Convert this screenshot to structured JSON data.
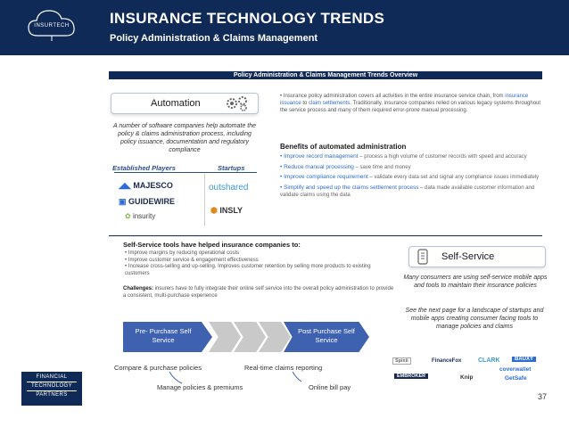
{
  "header": {
    "badge": "INSURTECH",
    "title": "INSURANCE TECHNOLOGY TRENDS",
    "subtitle": "Policy Administration & Claims Management"
  },
  "section_title": "Policy Administration & Claims Management Trends Overview",
  "automation": {
    "label": "Automation",
    "note": "A number of software companies help automate the policy & claims administration process, including policy issuance, documentation and regulatory compliance",
    "established_label": "Established Players",
    "startups_label": "Startups",
    "established": [
      "MAJESCO",
      "GUIDEWIRE",
      "insurity"
    ],
    "startups": [
      "outshared",
      "INSLY"
    ]
  },
  "right_top": {
    "bullet1_a": "Insurance policy administration covers all activities in the entire insurance service chain, from ",
    "bullet1_b": "insurance issuance",
    "bullet1_c": " to ",
    "bullet1_d": "claim settlements",
    "bullet1_e": ". Traditionally, insurance companies relied on various legacy systems throughout the service process and many of them required error-prone manual processing.",
    "benefits_title": "Benefits of automated administration",
    "benefits": [
      {
        "head": "Improve record management",
        "rest": " – process a high volume of customer records with speed and accuracy"
      },
      {
        "head": "Reduce manual processing",
        "rest": " – save time and money"
      },
      {
        "head": "Improve compliance requirement",
        "rest": " – validate every data set and signal any compliance issues immediately"
      },
      {
        "head": "Simplify and speed up the claims settlement process",
        "rest": " – data made available customer information and validate claims using the data"
      }
    ]
  },
  "self_service": {
    "intro_title": "Self-Service tools have helped insurance companies to:",
    "items": [
      "Improve margins by reducing operational costs",
      "Improve customer service & engagement effectiveness",
      "Increase cross-selling and up-selling. Improves customer retention by selling more products to existing customers"
    ],
    "challenges_label": "Challenges:",
    "challenges_text": " insurers have to fully integrate their online self service into the overall policy administration to provide a consistent, multi-purchase experience",
    "label": "Self-Service",
    "note1": "Many consumers are using self-service mobile apps and tools to maintain their insurance policies",
    "note2": "See the next page for a landscape of startups and mobile apps creating consumer facing tools to manage policies and claims",
    "pre_label": "Pre- Purchase Self Service",
    "post_label": "Post Purchase Self Service",
    "caps": [
      "Compare & purchase policies",
      "Real-time claims reporting",
      "Manage policies & premiums",
      "Online bill pay"
    ],
    "logos": [
      "Spixii",
      "FinanceFox",
      "CLARK",
      "BAUXY",
      "coverwallet",
      "EMBROKER",
      "Knip",
      "GetSafe"
    ]
  },
  "footer": {
    "firm": [
      "FINANCIAL",
      "TECHNOLOGY",
      "PARTNERS"
    ],
    "page": "37"
  }
}
